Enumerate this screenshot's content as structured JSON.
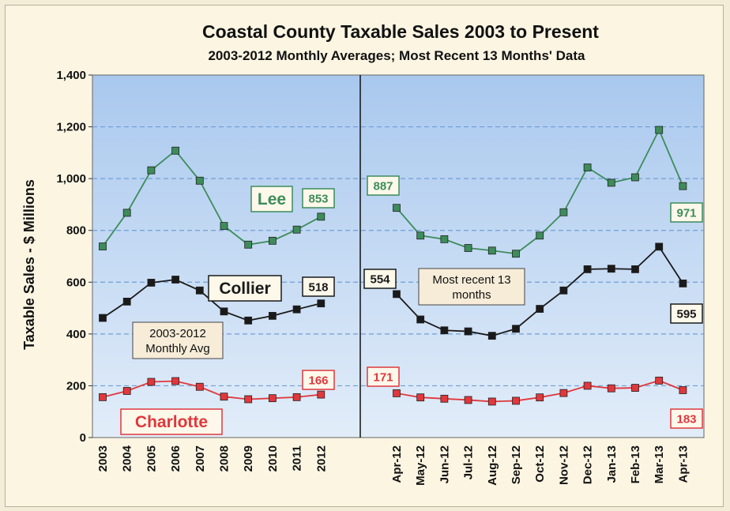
{
  "chart_data": {
    "type": "line",
    "title": "Coastal County Taxable Sales 2003 to Present",
    "subtitle": "2003-2012 Monthly Averages; Most Recent 13 Months' Data",
    "ylabel": "Taxable Sales - $ Millions",
    "ylim": [
      0,
      1400
    ],
    "yticks": [
      "0",
      "200",
      "400",
      "600",
      "800",
      "1,000",
      "1,200",
      "1,400"
    ],
    "grid": true,
    "panels": [
      {
        "x": [
          "2003",
          "2004",
          "2005",
          "2006",
          "2007",
          "2008",
          "2009",
          "2010",
          "2011",
          "2012"
        ],
        "annotation": [
          "2003-2012",
          "Monthly Avg"
        ]
      },
      {
        "x": [
          "Apr-12",
          "May-12",
          "Jun-12",
          "Jul-12",
          "Aug-12",
          "Sep-12",
          "Oct-12",
          "Nov-12",
          "Dec-12",
          "Jan-13",
          "Feb-13",
          "Mar-13",
          "Apr-13"
        ],
        "annotation": [
          "Most recent 13",
          "months"
        ]
      }
    ],
    "series": [
      {
        "name": "Lee",
        "color": "#3d8c5a",
        "annual": [
          738,
          868,
          1032,
          1108,
          992,
          817,
          745,
          760,
          803,
          853
        ],
        "monthly": [
          887,
          780,
          766,
          732,
          722,
          710,
          780,
          870,
          1043,
          984,
          1005,
          1188,
          971
        ],
        "labels": [
          "853",
          "887",
          "971"
        ]
      },
      {
        "name": "Collier",
        "color": "#1a1a1a",
        "annual": [
          462,
          525,
          598,
          610,
          568,
          487,
          452,
          470,
          495,
          518
        ],
        "monthly": [
          554,
          456,
          414,
          410,
          393,
          420,
          497,
          568,
          650,
          652,
          650,
          737,
          595
        ],
        "labels": [
          "518",
          "554",
          "595"
        ]
      },
      {
        "name": "Charlotte",
        "color": "#e0383c",
        "annual": [
          156,
          180,
          215,
          218,
          196,
          158,
          148,
          152,
          156,
          166
        ],
        "monthly": [
          171,
          155,
          150,
          145,
          139,
          142,
          155,
          172,
          200,
          190,
          192,
          220,
          183
        ],
        "labels": [
          "166",
          "171",
          "183"
        ]
      }
    ]
  }
}
